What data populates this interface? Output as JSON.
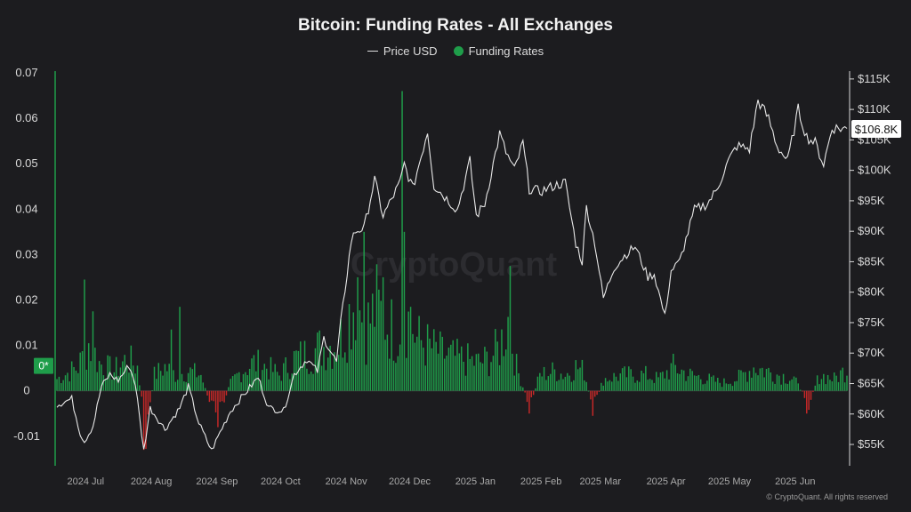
{
  "title": "Bitcoin: Funding Rates - All Exchanges",
  "legend": {
    "price_label": "Price USD",
    "funding_label": "Funding Rates"
  },
  "watermark": "CryptoQuant",
  "copyright": "© CryptoQuant. All rights reserved",
  "colors": {
    "background": "#1c1c1f",
    "positive": "#1f9d4a",
    "negative": "#c62828",
    "price_line": "#e8e8e8"
  },
  "chart_data": {
    "type": "bar",
    "x_start": "2024-06-25",
    "x_end": "2025-07-03",
    "x_ticks": [
      {
        "date": "2024-07-01",
        "label": "2024 Jul"
      },
      {
        "date": "2024-08-01",
        "label": "2024 Aug"
      },
      {
        "date": "2024-09-01",
        "label": "2024 Sep"
      },
      {
        "date": "2024-10-01",
        "label": "2024 Oct"
      },
      {
        "date": "2024-11-01",
        "label": "2024 Nov"
      },
      {
        "date": "2024-12-01",
        "label": "2024 Dec"
      },
      {
        "date": "2025-01-01",
        "label": "2025 Jan"
      },
      {
        "date": "2025-02-01",
        "label": "2025 Feb"
      },
      {
        "date": "2025-03-01",
        "label": "2025 Mar"
      },
      {
        "date": "2025-04-01",
        "label": "2025 Apr"
      },
      {
        "date": "2025-05-01",
        "label": "2025 May"
      },
      {
        "date": "2025-06-01",
        "label": "2025 Jun"
      }
    ],
    "y_left": {
      "ylim": [
        -0.0165,
        0.07
      ],
      "ticks": [
        {
          "value": 0.07,
          "label": "0.07"
        },
        {
          "value": 0.06,
          "label": "0.06"
        },
        {
          "value": 0.05,
          "label": "0.05"
        },
        {
          "value": 0.04,
          "label": "0.04"
        },
        {
          "value": 0.03,
          "label": "0.03"
        },
        {
          "value": 0.02,
          "label": "0.02"
        },
        {
          "value": 0.01,
          "label": "0.01"
        },
        {
          "value": 0,
          "label": "0"
        },
        {
          "value": -0.01,
          "label": "-0.01"
        }
      ]
    },
    "y_right": {
      "ylim": [
        51500,
        116000
      ],
      "ticks": [
        {
          "value": 115000,
          "label": "$115K"
        },
        {
          "value": 110000,
          "label": "$110K"
        },
        {
          "value": 105000,
          "label": "$105K"
        },
        {
          "value": 100000,
          "label": "$100K"
        },
        {
          "value": 95000,
          "label": "$95K"
        },
        {
          "value": 90000,
          "label": "$90K"
        },
        {
          "value": 85000,
          "label": "$85K"
        },
        {
          "value": 80000,
          "label": "$80K"
        },
        {
          "value": 75000,
          "label": "$75K"
        },
        {
          "value": 70000,
          "label": "$70K"
        },
        {
          "value": 65000,
          "label": "$65K"
        },
        {
          "value": 60000,
          "label": "$60K"
        },
        {
          "value": 55000,
          "label": "$55K"
        }
      ]
    },
    "last_funding_label": "0*",
    "last_funding_value": 0.0055,
    "last_price_label": "$106.8K",
    "last_price_value": 106800,
    "funding_anchors": [
      [
        "2024-06-25",
        0.003
      ],
      [
        "2024-07-05",
        0.006
      ],
      [
        "2024-07-10",
        0.012
      ],
      [
        "2024-07-15",
        0.007
      ],
      [
        "2024-07-22",
        0.005
      ],
      [
        "2024-07-28",
        0.008
      ],
      [
        "2024-08-02",
        0.006
      ],
      [
        "2024-08-06",
        -0.011
      ],
      [
        "2024-08-10",
        0.004
      ],
      [
        "2024-08-15",
        0.006
      ],
      [
        "2024-08-20",
        0.004
      ],
      [
        "2024-08-26",
        0.005
      ],
      [
        "2024-09-01",
        0.004
      ],
      [
        "2024-09-05",
        -0.003
      ],
      [
        "2024-09-10",
        -0.005
      ],
      [
        "2024-09-15",
        0.002
      ],
      [
        "2024-09-20",
        0.005
      ],
      [
        "2024-09-26",
        0.007
      ],
      [
        "2024-10-02",
        0.006
      ],
      [
        "2024-10-08",
        0.004
      ],
      [
        "2024-10-15",
        0.008
      ],
      [
        "2024-10-20",
        0.009
      ],
      [
        "2024-10-28",
        0.011
      ],
      [
        "2024-11-05",
        0.012
      ],
      [
        "2024-11-10",
        0.019
      ],
      [
        "2024-11-13",
        0.024
      ],
      [
        "2024-11-18",
        0.016
      ],
      [
        "2024-11-23",
        0.021
      ],
      [
        "2024-11-28",
        0.017
      ],
      [
        "2024-12-03",
        0.014
      ],
      [
        "2024-12-07",
        0.019
      ],
      [
        "2024-12-12",
        0.013
      ],
      [
        "2024-12-18",
        0.011
      ],
      [
        "2024-12-25",
        0.009
      ],
      [
        "2025-01-02",
        0.008
      ],
      [
        "2025-01-10",
        0.007
      ],
      [
        "2025-01-15",
        0.008
      ],
      [
        "2025-01-20",
        0.011
      ],
      [
        "2025-01-24",
        0.018
      ],
      [
        "2025-01-28",
        0.006
      ],
      [
        "2025-02-03",
        -0.004
      ],
      [
        "2025-02-08",
        0.004
      ],
      [
        "2025-02-15",
        0.005
      ],
      [
        "2025-02-20",
        0.004
      ],
      [
        "2025-02-25",
        0.006
      ],
      [
        "2025-03-01",
        0.005
      ],
      [
        "2025-03-05",
        -0.005
      ],
      [
        "2025-03-10",
        0.003
      ],
      [
        "2025-03-20",
        0.004
      ],
      [
        "2025-03-30",
        0.004
      ],
      [
        "2025-04-05",
        0.003
      ],
      [
        "2025-04-12",
        0.006
      ],
      [
        "2025-04-20",
        0.004
      ],
      [
        "2025-04-28",
        0.003
      ],
      [
        "2025-05-05",
        0.002
      ],
      [
        "2025-05-12",
        0.003
      ],
      [
        "2025-05-20",
        0.006
      ],
      [
        "2025-05-26",
        0.005
      ],
      [
        "2025-06-01",
        0.004
      ],
      [
        "2025-06-08",
        0.003
      ],
      [
        "2025-06-15",
        -0.003
      ],
      [
        "2025-06-20",
        0.004
      ],
      [
        "2025-06-27",
        0.003
      ],
      [
        "2025-07-03",
        0.0055
      ]
    ],
    "funding_spikes": [
      [
        "2024-07-08",
        0.0245
      ],
      [
        "2024-07-12",
        0.0175
      ],
      [
        "2024-08-05",
        -0.013
      ],
      [
        "2024-08-18",
        0.0135
      ],
      [
        "2024-08-22",
        0.0185
      ],
      [
        "2024-09-09",
        -0.008
      ],
      [
        "2024-11-14",
        0.025
      ],
      [
        "2024-11-17",
        0.035
      ],
      [
        "2024-11-26",
        0.025
      ],
      [
        "2024-12-05",
        0.066
      ],
      [
        "2024-12-06",
        0.035
      ],
      [
        "2024-12-09",
        0.0185
      ],
      [
        "2025-01-25",
        0.0275
      ],
      [
        "2025-02-03",
        -0.005
      ],
      [
        "2025-03-05",
        -0.0055
      ],
      [
        "2025-06-14",
        -0.005
      ]
    ],
    "price_anchors": [
      [
        "2024-06-25",
        61500
      ],
      [
        "2024-07-02",
        62500
      ],
      [
        "2024-07-06",
        56800
      ],
      [
        "2024-07-08",
        55500
      ],
      [
        "2024-07-12",
        58000
      ],
      [
        "2024-07-16",
        64500
      ],
      [
        "2024-07-20",
        66500
      ],
      [
        "2024-07-24",
        65500
      ],
      [
        "2024-07-29",
        68000
      ],
      [
        "2024-08-01",
        65000
      ],
      [
        "2024-08-05",
        54000
      ],
      [
        "2024-08-08",
        61000
      ],
      [
        "2024-08-15",
        57500
      ],
      [
        "2024-08-22",
        61000
      ],
      [
        "2024-08-26",
        64500
      ],
      [
        "2024-08-31",
        58500
      ],
      [
        "2024-09-06",
        54000
      ],
      [
        "2024-09-10",
        57000
      ],
      [
        "2024-09-15",
        60500
      ],
      [
        "2024-09-22",
        63500
      ],
      [
        "2024-09-28",
        66000
      ],
      [
        "2024-10-03",
        61000
      ],
      [
        "2024-10-10",
        60500
      ],
      [
        "2024-10-15",
        66500
      ],
      [
        "2024-10-21",
        69000
      ],
      [
        "2024-10-26",
        67000
      ],
      [
        "2024-10-29",
        72500
      ],
      [
        "2024-11-04",
        68500
      ],
      [
        "2024-11-06",
        75000
      ],
      [
        "2024-11-11",
        88500
      ],
      [
        "2024-11-13",
        90000
      ],
      [
        "2024-11-17",
        90500
      ],
      [
        "2024-11-22",
        98500
      ],
      [
        "2024-11-26",
        92500
      ],
      [
        "2024-12-04",
        98000
      ],
      [
        "2024-12-06",
        101000
      ],
      [
        "2024-12-10",
        97000
      ],
      [
        "2024-12-17",
        106500
      ],
      [
        "2024-12-20",
        97500
      ],
      [
        "2024-12-27",
        95000
      ],
      [
        "2024-12-31",
        93500
      ],
      [
        "2025-01-06",
        101500
      ],
      [
        "2025-01-09",
        92500
      ],
      [
        "2025-01-13",
        94500
      ],
      [
        "2025-01-20",
        106000
      ],
      [
        "2025-01-23",
        103000
      ],
      [
        "2025-01-27",
        100000
      ],
      [
        "2025-01-31",
        104500
      ],
      [
        "2025-02-03",
        97000
      ],
      [
        "2025-02-08",
        96500
      ],
      [
        "2025-02-15",
        97500
      ],
      [
        "2025-02-20",
        98000
      ],
      [
        "2025-02-25",
        88000
      ],
      [
        "2025-02-28",
        85000
      ],
      [
        "2025-03-02",
        94000
      ],
      [
        "2025-03-06",
        88000
      ],
      [
        "2025-03-10",
        79000
      ],
      [
        "2025-03-15",
        84000
      ],
      [
        "2025-03-20",
        86000
      ],
      [
        "2025-03-25",
        87500
      ],
      [
        "2025-03-31",
        82500
      ],
      [
        "2025-04-03",
        83000
      ],
      [
        "2025-04-08",
        76000
      ],
      [
        "2025-04-11",
        83500
      ],
      [
        "2025-04-15",
        85000
      ],
      [
        "2025-04-22",
        93500
      ],
      [
        "2025-04-28",
        94500
      ],
      [
        "2025-05-02",
        96500
      ],
      [
        "2025-05-08",
        101500
      ],
      [
        "2025-05-12",
        104000
      ],
      [
        "2025-05-18",
        103500
      ],
      [
        "2025-05-22",
        111500
      ],
      [
        "2025-05-27",
        108500
      ],
      [
        "2025-05-31",
        104000
      ],
      [
        "2025-06-05",
        101500
      ],
      [
        "2025-06-10",
        110000
      ],
      [
        "2025-06-14",
        105500
      ],
      [
        "2025-06-18",
        104500
      ],
      [
        "2025-06-22",
        101000
      ],
      [
        "2025-06-26",
        107000
      ],
      [
        "2025-07-03",
        106800
      ]
    ]
  }
}
